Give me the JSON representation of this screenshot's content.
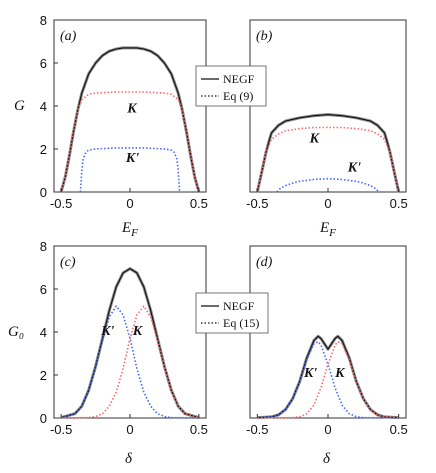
{
  "chart_data": [
    {
      "type": "line",
      "panel_label": "(a)",
      "xlabel": "E_F",
      "ylabel": "G",
      "xlim": [
        -0.5,
        0.5
      ],
      "ylim": [
        0,
        8
      ],
      "xticks": [
        "-0.5",
        "0",
        "0.5"
      ],
      "yticks": [
        "0",
        "2",
        "4",
        "6",
        "8"
      ],
      "curve_labels": [
        {
          "text": "K",
          "x": -0.02,
          "y": 3.7
        },
        {
          "text": "K'",
          "x": -0.03,
          "y": 1.4
        }
      ],
      "series": [
        {
          "name": "NEGF",
          "color": "#111111",
          "style": "solid",
          "x": [
            -0.5,
            -0.47,
            -0.44,
            -0.41,
            -0.38,
            -0.35,
            -0.3,
            -0.25,
            -0.2,
            -0.15,
            -0.1,
            -0.05,
            0,
            0.05,
            0.1,
            0.15,
            0.2,
            0.25,
            0.3,
            0.35,
            0.38,
            0.41,
            0.44,
            0.47,
            0.5
          ],
          "y": [
            0,
            0.7,
            1.7,
            2.8,
            3.8,
            4.6,
            5.5,
            6.0,
            6.35,
            6.55,
            6.65,
            6.7,
            6.7,
            6.7,
            6.65,
            6.55,
            6.35,
            6.0,
            5.5,
            4.6,
            3.8,
            2.8,
            1.7,
            0.7,
            0
          ]
        },
        {
          "name": "K",
          "color": "#ff6666",
          "style": "dotted",
          "x": [
            -0.5,
            -0.47,
            -0.44,
            -0.41,
            -0.38,
            -0.35,
            -0.3,
            -0.25,
            -0.2,
            -0.1,
            0,
            0.1,
            0.2,
            0.25,
            0.3,
            0.35,
            0.38,
            0.41,
            0.44,
            0.47,
            0.5
          ],
          "y": [
            0,
            0.7,
            1.8,
            2.9,
            3.8,
            4.3,
            4.55,
            4.6,
            4.62,
            4.65,
            4.65,
            4.65,
            4.62,
            4.6,
            4.55,
            4.3,
            3.8,
            2.9,
            1.8,
            0.7,
            0
          ]
        },
        {
          "name": "K'",
          "color": "#4466ff",
          "style": "dotted",
          "x": [
            -0.36,
            -0.355,
            -0.35,
            -0.34,
            -0.32,
            -0.3,
            -0.25,
            -0.2,
            -0.1,
            0,
            0.1,
            0.2,
            0.25,
            0.3,
            0.32,
            0.34,
            0.35,
            0.355,
            0.36
          ],
          "y": [
            0,
            0.5,
            1.0,
            1.55,
            1.85,
            1.95,
            2.0,
            2.02,
            2.05,
            2.05,
            2.05,
            2.02,
            2.0,
            1.95,
            1.85,
            1.55,
            1.0,
            0.5,
            0
          ]
        }
      ]
    },
    {
      "type": "line",
      "panel_label": "(b)",
      "xlabel": "E_F",
      "ylabel": "",
      "xlim": [
        -0.5,
        0.5
      ],
      "ylim": [
        0,
        8
      ],
      "xticks": [
        "-0.5",
        "0",
        "0.5"
      ],
      "yticks": [],
      "curve_labels": [
        {
          "text": "K",
          "x": -0.13,
          "y": 2.3
        },
        {
          "text": "K'",
          "x": 0.14,
          "y": 0.95
        }
      ],
      "series": [
        {
          "name": "NEGF",
          "color": "#111111",
          "style": "solid",
          "x": [
            -0.5,
            -0.47,
            -0.44,
            -0.42,
            -0.4,
            -0.35,
            -0.3,
            -0.2,
            -0.1,
            0,
            0.1,
            0.2,
            0.3,
            0.35,
            0.4,
            0.42,
            0.44,
            0.47,
            0.5
          ],
          "y": [
            0,
            0.9,
            1.8,
            2.3,
            2.75,
            3.1,
            3.3,
            3.45,
            3.55,
            3.6,
            3.55,
            3.45,
            3.3,
            3.1,
            2.75,
            2.3,
            1.8,
            0.9,
            0
          ]
        },
        {
          "name": "K",
          "color": "#ff6666",
          "style": "dotted",
          "x": [
            -0.5,
            -0.47,
            -0.44,
            -0.4,
            -0.35,
            -0.3,
            -0.2,
            -0.1,
            0,
            0.1,
            0.2,
            0.3,
            0.35,
            0.4,
            0.44,
            0.47,
            0.5
          ],
          "y": [
            0,
            0.9,
            1.8,
            2.45,
            2.7,
            2.85,
            2.95,
            3.0,
            3.0,
            3.0,
            2.95,
            2.85,
            2.7,
            2.45,
            1.8,
            0.9,
            0
          ]
        },
        {
          "name": "K'",
          "color": "#4466ff",
          "style": "dotted",
          "x": [
            -0.36,
            -0.34,
            -0.3,
            -0.25,
            -0.2,
            -0.1,
            0,
            0.1,
            0.2,
            0.25,
            0.3,
            0.34,
            0.36
          ],
          "y": [
            0,
            0.15,
            0.3,
            0.42,
            0.5,
            0.58,
            0.62,
            0.58,
            0.5,
            0.42,
            0.3,
            0.15,
            0
          ]
        }
      ]
    },
    {
      "type": "line",
      "panel_label": "(c)",
      "xlabel": "δ",
      "ylabel": "G₀",
      "xlim": [
        -0.5,
        0.5
      ],
      "ylim": [
        0,
        8
      ],
      "xticks": [
        "-0.5",
        "0",
        "0.5"
      ],
      "yticks": [
        "0",
        "2",
        "4",
        "6",
        "8"
      ],
      "curve_labels": [
        {
          "text": "K'",
          "x": -0.21,
          "y": 3.85
        },
        {
          "text": "K",
          "x": 0.02,
          "y": 3.85
        }
      ],
      "series": [
        {
          "name": "NEGF",
          "color": "#111111",
          "style": "solid",
          "x": [
            -0.5,
            -0.4,
            -0.35,
            -0.3,
            -0.25,
            -0.2,
            -0.15,
            -0.1,
            -0.05,
            0,
            0.05,
            0.1,
            0.15,
            0.2,
            0.25,
            0.3,
            0.35,
            0.4,
            0.5
          ],
          "y": [
            0.02,
            0.2,
            0.55,
            1.3,
            2.4,
            3.7,
            5.0,
            6.1,
            6.75,
            6.95,
            6.75,
            6.1,
            5.0,
            3.7,
            2.4,
            1.3,
            0.55,
            0.2,
            0.02
          ]
        },
        {
          "name": "K'",
          "color": "#4466ff",
          "style": "dotted",
          "x": [
            -0.5,
            -0.4,
            -0.35,
            -0.3,
            -0.25,
            -0.2,
            -0.15,
            -0.1,
            -0.05,
            0,
            0.05,
            0.1,
            0.15,
            0.2,
            0.25,
            0.3,
            0.5
          ],
          "y": [
            0.02,
            0.2,
            0.55,
            1.3,
            2.4,
            3.6,
            4.7,
            5.2,
            4.8,
            3.7,
            2.3,
            1.2,
            0.55,
            0.2,
            0.07,
            0.02,
            0
          ]
        },
        {
          "name": "K",
          "color": "#ff6666",
          "style": "dotted",
          "x": [
            -0.5,
            -0.3,
            -0.25,
            -0.2,
            -0.15,
            -0.1,
            -0.05,
            0,
            0.05,
            0.1,
            0.15,
            0.2,
            0.25,
            0.3,
            0.35,
            0.4,
            0.5
          ],
          "y": [
            0,
            0.02,
            0.07,
            0.2,
            0.55,
            1.2,
            2.3,
            3.7,
            4.8,
            5.2,
            4.7,
            3.6,
            2.4,
            1.3,
            0.55,
            0.2,
            0.02
          ]
        }
      ]
    },
    {
      "type": "line",
      "panel_label": "(d)",
      "xlabel": "δ",
      "ylabel": "",
      "xlim": [
        -0.5,
        0.5
      ],
      "ylim": [
        0,
        8
      ],
      "xticks": [
        "-0.5",
        "0",
        "0.5"
      ],
      "yticks": [],
      "curve_labels": [
        {
          "text": "K'",
          "x": -0.17,
          "y": 1.9
        },
        {
          "text": "K",
          "x": 0.05,
          "y": 1.9
        }
      ],
      "series": [
        {
          "name": "NEGF",
          "color": "#111111",
          "style": "solid",
          "x": [
            -0.5,
            -0.4,
            -0.35,
            -0.3,
            -0.25,
            -0.2,
            -0.15,
            -0.1,
            -0.07,
            -0.05,
            0,
            0.05,
            0.07,
            0.1,
            0.15,
            0.2,
            0.25,
            0.3,
            0.35,
            0.4,
            0.5
          ],
          "y": [
            0.02,
            0.05,
            0.15,
            0.4,
            0.9,
            1.7,
            2.8,
            3.6,
            3.8,
            3.7,
            3.2,
            3.7,
            3.8,
            3.6,
            2.8,
            1.7,
            0.9,
            0.4,
            0.15,
            0.05,
            0.02
          ]
        },
        {
          "name": "K'",
          "color": "#4466ff",
          "style": "dotted",
          "x": [
            -0.5,
            -0.35,
            -0.3,
            -0.25,
            -0.2,
            -0.15,
            -0.1,
            -0.07,
            -0.05,
            0,
            0.05,
            0.1,
            0.15,
            0.2,
            0.25,
            0.5
          ],
          "y": [
            0,
            0.12,
            0.4,
            0.9,
            1.65,
            2.7,
            3.45,
            3.55,
            3.4,
            2.5,
            1.4,
            0.6,
            0.2,
            0.06,
            0.02,
            0
          ]
        },
        {
          "name": "K",
          "color": "#ff6666",
          "style": "dotted",
          "x": [
            -0.5,
            -0.25,
            -0.2,
            -0.15,
            -0.1,
            -0.05,
            0,
            0.05,
            0.07,
            0.1,
            0.15,
            0.2,
            0.25,
            0.3,
            0.35,
            0.5
          ],
          "y": [
            0,
            0.02,
            0.06,
            0.2,
            0.6,
            1.4,
            2.5,
            3.4,
            3.55,
            3.45,
            2.7,
            1.65,
            0.9,
            0.4,
            0.12,
            0
          ]
        }
      ]
    }
  ],
  "legends": [
    {
      "entries": [
        {
          "label": "NEGF",
          "style": "solid"
        },
        {
          "label": "Eq (9)",
          "style": "dotted"
        }
      ]
    },
    {
      "entries": [
        {
          "label": "NEGF",
          "style": "solid"
        },
        {
          "label": "Eq (15)",
          "style": "dotted"
        }
      ]
    }
  ]
}
